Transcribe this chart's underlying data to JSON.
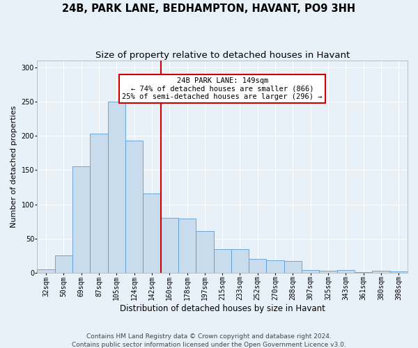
{
  "title": "24B, PARK LANE, BEDHAMPTON, HAVANT, PO9 3HH",
  "subtitle": "Size of property relative to detached houses in Havant",
  "xlabel": "Distribution of detached houses by size in Havant",
  "ylabel": "Number of detached properties",
  "bar_color": "#c9dced",
  "bar_edge_color": "#5b9bd5",
  "bin_labels": [
    "32sqm",
    "50sqm",
    "69sqm",
    "87sqm",
    "105sqm",
    "124sqm",
    "142sqm",
    "160sqm",
    "178sqm",
    "197sqm",
    "215sqm",
    "233sqm",
    "252sqm",
    "270sqm",
    "288sqm",
    "307sqm",
    "325sqm",
    "343sqm",
    "361sqm",
    "380sqm",
    "398sqm"
  ],
  "bar_heights": [
    5,
    25,
    155,
    203,
    250,
    193,
    116,
    80,
    79,
    61,
    35,
    35,
    20,
    18,
    17,
    4,
    3,
    4,
    1,
    3,
    2
  ],
  "vline_position": 7,
  "vline_color": "#cc0000",
  "annotation_text": "24B PARK LANE: 149sqm\n← 74% of detached houses are smaller (866)\n25% of semi-detached houses are larger (296) →",
  "annotation_box_color": "#ffffff",
  "annotation_box_edge_color": "#cc0000",
  "ylim": [
    0,
    310
  ],
  "yticks": [
    0,
    50,
    100,
    150,
    200,
    250,
    300
  ],
  "background_color": "#e8f0f8",
  "grid_color": "#ffffff",
  "footer_text": "Contains HM Land Registry data © Crown copyright and database right 2024.\nContains public sector information licensed under the Open Government Licence v3.0.",
  "title_fontsize": 10.5,
  "subtitle_fontsize": 9.5,
  "xlabel_fontsize": 8.5,
  "ylabel_fontsize": 8,
  "tick_fontsize": 7,
  "annotation_fontsize": 7.5,
  "footer_fontsize": 6.5
}
